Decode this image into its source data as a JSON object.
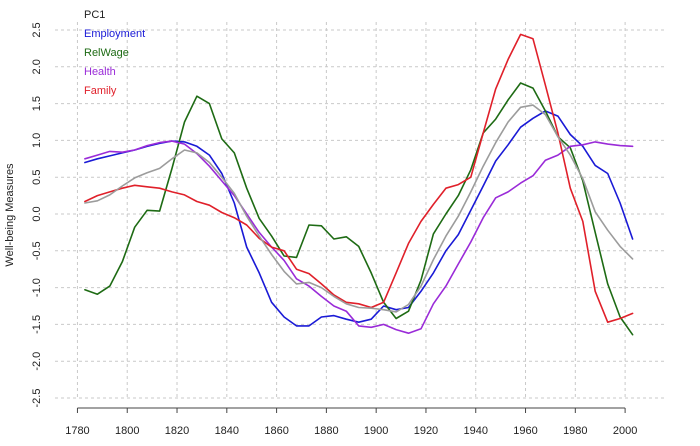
{
  "chart_data": {
    "type": "line",
    "title": "",
    "xlabel": "",
    "ylabel": "Well-being Measures",
    "xlim": [
      1775,
      2010
    ],
    "ylim": [
      -2.5,
      2.5
    ],
    "x_ticks": [
      1780,
      1800,
      1820,
      1840,
      1860,
      1880,
      1900,
      1920,
      1940,
      1960,
      1980,
      2000
    ],
    "y_ticks": [
      -2.5,
      -2.0,
      -1.5,
      -1.0,
      -0.5,
      0.0,
      0.5,
      1.0,
      1.5,
      2.0,
      2.5
    ],
    "y_tick_labels": [
      "-2.5",
      "-2.0",
      "-1.5",
      "-1.0",
      "-0.5",
      "0.0",
      "0.5",
      "1.0",
      "1.5",
      "2.0",
      "2.5"
    ],
    "grid": true,
    "legend": {
      "position": "top-left",
      "entries": [
        {
          "label": "PC1",
          "color": "#222222"
        },
        {
          "label": "Employment",
          "color": "#1a1ad6"
        },
        {
          "label": "RelWage",
          "color": "#1e6b14"
        },
        {
          "label": "Health",
          "color": "#9a2bd8"
        },
        {
          "label": "Family",
          "color": "#e0202a"
        }
      ]
    },
    "series": [
      {
        "name": "Employment",
        "color": "#1a1ad6",
        "x": [
          1783,
          1788,
          1793,
          1798,
          1803,
          1808,
          1813,
          1818,
          1823,
          1828,
          1833,
          1838,
          1843,
          1848,
          1853,
          1858,
          1863,
          1868,
          1873,
          1878,
          1883,
          1888,
          1893,
          1898,
          1903,
          1908,
          1913,
          1918,
          1923,
          1928,
          1933,
          1938,
          1943,
          1948,
          1953,
          1958,
          1963,
          1968,
          1973,
          1978,
          1983,
          1988,
          1993,
          1998,
          2003
        ],
        "values": [
          0.7,
          0.75,
          0.79,
          0.83,
          0.87,
          0.92,
          0.96,
          0.99,
          0.98,
          0.92,
          0.8,
          0.55,
          0.15,
          -0.45,
          -0.8,
          -1.2,
          -1.4,
          -1.52,
          -1.52,
          -1.4,
          -1.38,
          -1.43,
          -1.47,
          -1.43,
          -1.25,
          -1.3,
          -1.27,
          -1.05,
          -0.8,
          -0.5,
          -0.28,
          0.05,
          0.38,
          0.72,
          0.94,
          1.18,
          1.3,
          1.4,
          1.33,
          1.08,
          0.92,
          0.66,
          0.55,
          0.15,
          -0.34
        ]
      },
      {
        "name": "RelWage",
        "color": "#1e6b14",
        "x": [
          1783,
          1788,
          1793,
          1798,
          1803,
          1808,
          1813,
          1818,
          1823,
          1828,
          1833,
          1838,
          1843,
          1848,
          1853,
          1858,
          1863,
          1868,
          1873,
          1878,
          1883,
          1888,
          1893,
          1898,
          1903,
          1908,
          1913,
          1918,
          1923,
          1928,
          1933,
          1938,
          1943,
          1948,
          1953,
          1958,
          1963,
          1968,
          1973,
          1978,
          1983,
          1988,
          1993,
          1998,
          2003
        ],
        "values": [
          -1.03,
          -1.09,
          -0.98,
          -0.65,
          -0.18,
          0.05,
          0.04,
          0.62,
          1.25,
          1.6,
          1.5,
          1.02,
          0.83,
          0.35,
          -0.06,
          -0.3,
          -0.57,
          -0.59,
          -0.15,
          -0.16,
          -0.34,
          -0.31,
          -0.44,
          -0.8,
          -1.2,
          -1.42,
          -1.32,
          -0.9,
          -0.27,
          0.0,
          0.25,
          0.6,
          1.1,
          1.29,
          1.55,
          1.78,
          1.71,
          1.4,
          1.05,
          0.9,
          0.45,
          -0.25,
          -0.95,
          -1.4,
          -1.64
        ]
      },
      {
        "name": "Health",
        "color": "#9a2bd8",
        "x": [
          1783,
          1788,
          1793,
          1798,
          1803,
          1808,
          1813,
          1818,
          1823,
          1828,
          1833,
          1838,
          1843,
          1848,
          1853,
          1858,
          1863,
          1868,
          1873,
          1878,
          1883,
          1888,
          1893,
          1898,
          1903,
          1908,
          1913,
          1918,
          1923,
          1928,
          1933,
          1938,
          1943,
          1948,
          1953,
          1958,
          1963,
          1968,
          1973,
          1978,
          1983,
          1988,
          1993,
          1998,
          2003
        ],
        "values": [
          0.75,
          0.8,
          0.85,
          0.84,
          0.87,
          0.93,
          0.97,
          0.99,
          0.95,
          0.82,
          0.65,
          0.45,
          0.25,
          0.0,
          -0.25,
          -0.45,
          -0.63,
          -0.88,
          -0.98,
          -1.12,
          -1.25,
          -1.32,
          -1.52,
          -1.54,
          -1.5,
          -1.57,
          -1.62,
          -1.56,
          -1.22,
          -0.98,
          -0.68,
          -0.38,
          -0.05,
          0.22,
          0.3,
          0.42,
          0.52,
          0.73,
          0.8,
          0.92,
          0.94,
          0.98,
          0.95,
          0.93,
          0.92
        ]
      },
      {
        "name": "Family",
        "color": "#e0202a",
        "x": [
          1783,
          1788,
          1793,
          1798,
          1803,
          1808,
          1813,
          1818,
          1823,
          1828,
          1833,
          1838,
          1843,
          1848,
          1853,
          1858,
          1863,
          1868,
          1873,
          1878,
          1883,
          1888,
          1893,
          1898,
          1903,
          1908,
          1913,
          1918,
          1923,
          1928,
          1933,
          1938,
          1943,
          1948,
          1953,
          1958,
          1963,
          1968,
          1973,
          1978,
          1983,
          1988,
          1993,
          1998,
          2003
        ],
        "values": [
          0.17,
          0.25,
          0.3,
          0.35,
          0.39,
          0.37,
          0.35,
          0.3,
          0.26,
          0.17,
          0.12,
          0.02,
          -0.05,
          -0.15,
          -0.33,
          -0.45,
          -0.5,
          -0.75,
          -0.81,
          -0.95,
          -1.1,
          -1.2,
          -1.22,
          -1.27,
          -1.2,
          -0.8,
          -0.4,
          -0.1,
          0.13,
          0.35,
          0.4,
          0.5,
          1.1,
          1.7,
          2.1,
          2.44,
          2.38,
          1.75,
          1.1,
          0.35,
          -0.1,
          -1.05,
          -1.47,
          -1.42,
          -1.35
        ]
      },
      {
        "name": "PC1",
        "color": "#9c9c9c",
        "width": 3.2,
        "x": [
          1783,
          1788,
          1793,
          1798,
          1803,
          1808,
          1813,
          1818,
          1823,
          1828,
          1833,
          1838,
          1843,
          1848,
          1853,
          1858,
          1863,
          1868,
          1873,
          1878,
          1883,
          1888,
          1893,
          1898,
          1903,
          1908,
          1913,
          1918,
          1923,
          1928,
          1933,
          1938,
          1943,
          1948,
          1953,
          1958,
          1963,
          1968,
          1973,
          1978,
          1983,
          1988,
          1993,
          1998,
          2003
        ],
        "values": [
          0.15,
          0.18,
          0.26,
          0.38,
          0.49,
          0.56,
          0.62,
          0.75,
          0.87,
          0.83,
          0.7,
          0.5,
          0.28,
          -0.03,
          -0.3,
          -0.55,
          -0.78,
          -0.95,
          -0.93,
          -1.0,
          -1.12,
          -1.22,
          -1.27,
          -1.28,
          -1.3,
          -1.33,
          -1.23,
          -0.98,
          -0.62,
          -0.3,
          -0.03,
          0.3,
          0.65,
          0.97,
          1.25,
          1.45,
          1.48,
          1.35,
          1.05,
          0.8,
          0.48,
          0.03,
          -0.22,
          -0.44,
          -0.61
        ]
      }
    ]
  }
}
